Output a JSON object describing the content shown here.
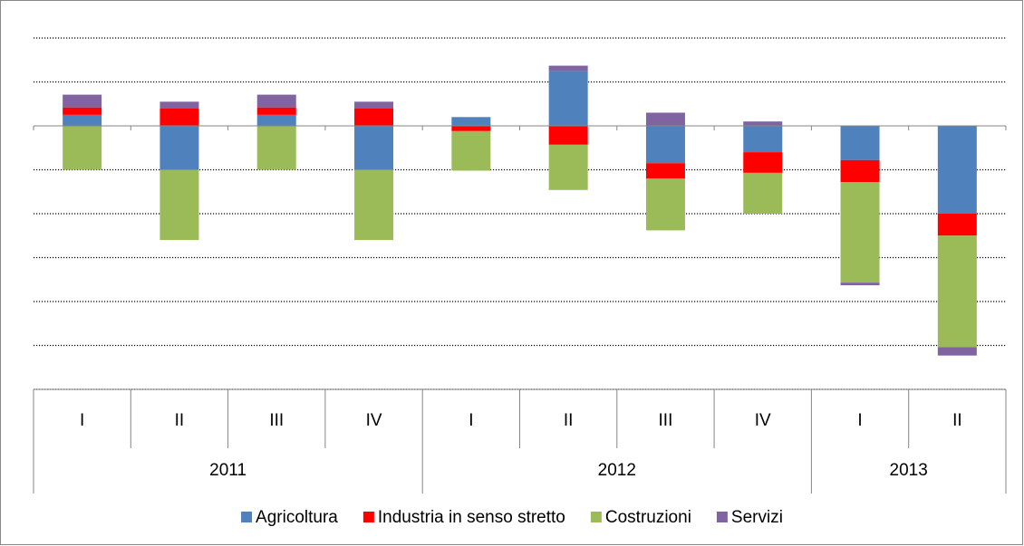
{
  "chart_data": {
    "type": "stacked_bar",
    "categories": [
      "I",
      "II",
      "III",
      "IV",
      "I",
      "II",
      "III",
      "IV",
      "I",
      "II"
    ],
    "groups": [
      {
        "label": "2011",
        "span": 4
      },
      {
        "label": "2012",
        "span": 4
      },
      {
        "label": "2013",
        "span": 2
      }
    ],
    "series": [
      {
        "name": "Agricoltura",
        "color": "#4f81bd",
        "values": [
          0.25,
          -1.0,
          0.25,
          -1.0,
          0.2,
          1.25,
          -0.85,
          -0.6,
          -0.78,
          -2.0
        ]
      },
      {
        "name": "Industria in senso stretto",
        "color": "#ff0000",
        "values": [
          0.17,
          0.4,
          0.17,
          0.4,
          -0.12,
          -0.43,
          -0.35,
          -0.47,
          -0.5,
          -0.5
        ]
      },
      {
        "name": "Costruzioni",
        "color": "#9bbb59",
        "values": [
          -1.0,
          -1.6,
          -1.0,
          -1.6,
          -0.9,
          -1.03,
          -1.18,
          -0.93,
          -2.29,
          -2.54
        ]
      },
      {
        "name": "Servizi",
        "color": "#8064a2",
        "values": [
          0.29,
          0.15,
          0.29,
          0.15,
          0,
          0.12,
          0.3,
          0.1,
          -0.06,
          -0.19
        ]
      }
    ],
    "ylim": [
      -6,
      2
    ],
    "yticks": [
      -6,
      -5,
      -4,
      -3,
      -2,
      -1,
      0,
      1,
      2
    ],
    "grid": true,
    "legend": "bottom"
  }
}
